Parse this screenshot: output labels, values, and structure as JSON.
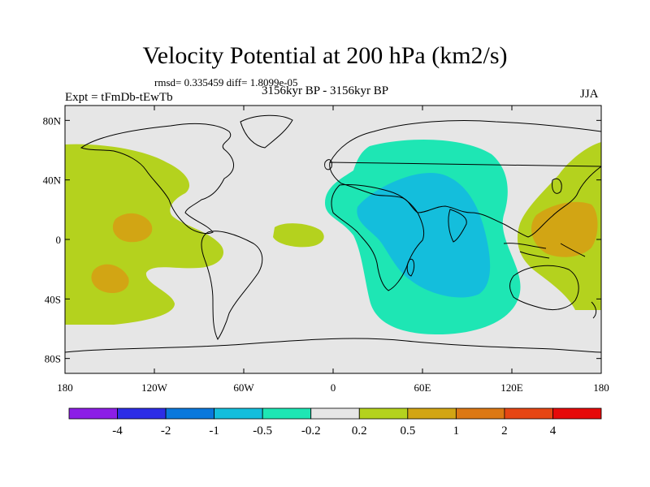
{
  "title": "Velocity Potential at 200 hPa (km2/s)",
  "stats_line": "rmsd= 0.335459 diff= 1.8099e-05",
  "experiment_label": "Expt = tFmDb-tEwTb",
  "period_label": "3156kyr BP - 3156kyr BP",
  "season_label": "JJA",
  "axes": {
    "x_ticks": [
      "180",
      "120W",
      "60W",
      "0",
      "60E",
      "120E",
      "180"
    ],
    "y_ticks": [
      "80N",
      "40N",
      "0",
      "40S",
      "80S"
    ]
  },
  "colorbar": {
    "labels": [
      "-4",
      "-2",
      "-1",
      "-0.5",
      "-0.2",
      "0.2",
      "0.5",
      "1",
      "2",
      "4"
    ],
    "colors": [
      "#8c1ee6",
      "#2d2de6",
      "#0a78dc",
      "#14bedc",
      "#1ee6b4",
      "#e6e6e6",
      "#b4d21e",
      "#d2a514",
      "#dc7814",
      "#e64614",
      "#e60a0a"
    ]
  },
  "chart_data": {
    "type": "contour-map",
    "variable": "Velocity Potential",
    "level": "200 hPa",
    "units": "km2/s",
    "levels": [
      -4,
      -2,
      -1,
      -0.5,
      -0.2,
      0.2,
      0.5,
      1,
      2,
      4
    ],
    "lon_range": [
      -180,
      180
    ],
    "lat_range": [
      -90,
      90
    ],
    "regions": [
      {
        "name": "eastern-pacific-positive",
        "class": "0.2 to 0.5"
      },
      {
        "name": "pacific-n-max",
        "class": "0.5 to 1"
      },
      {
        "name": "pacific-s-max",
        "class": "0.5 to 1"
      },
      {
        "name": "atlantic-patch",
        "class": "0.2 to 0.5"
      },
      {
        "name": "south-america-patch",
        "class": "0.2 to 0.5"
      },
      {
        "name": "indian-ocean-negative",
        "class": "-0.5 to -0.2"
      },
      {
        "name": "africa-arabia-min",
        "class": "-1 to -0.5"
      },
      {
        "name": "western-pacific-positive",
        "class": "0.2 to 0.5"
      },
      {
        "name": "western-pacific-max",
        "class": "0.5 to 1"
      }
    ]
  }
}
